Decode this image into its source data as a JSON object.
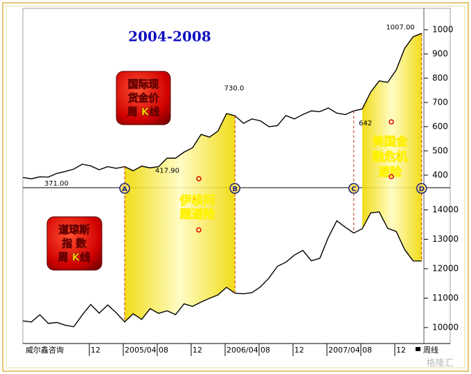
{
  "title": "2004-2008",
  "source": "威尔鑫咨询",
  "period": "周线",
  "watermark": "格隆汇",
  "markers": [
    "A",
    "B",
    "C",
    "D"
  ],
  "notes": [
    [
      "伊核问",
      "题避险"
    ],
    [
      "美国金",
      "融危机",
      "避险"
    ]
  ],
  "chart_data": [
    {
      "type": "line",
      "label_lines": [
        "国际现",
        "货金价",
        "周 K线"
      ],
      "color": "#000000",
      "values": [
        390,
        385,
        393,
        392,
        407,
        415,
        425,
        445,
        438,
        422,
        435,
        428,
        435,
        418,
        437,
        430,
        435,
        470,
        470,
        495,
        513,
        568,
        557,
        582,
        654,
        645,
        614,
        632,
        624,
        600,
        604,
        646,
        632,
        650,
        665,
        662,
        677,
        656,
        650,
        665,
        673,
        743,
        789,
        783,
        834,
        923,
        971,
        985
      ],
      "ylim": [
        351,
        1037
      ],
      "yticks": [
        400,
        500,
        600,
        700,
        800,
        900,
        1000
      ],
      "price_labels": [
        {
          "value": 1007,
          "label": "1007.00"
        },
        {
          "value": 730,
          "label": "730.0"
        },
        {
          "value": 642,
          "label": "642"
        },
        {
          "value": 417.9,
          "label": "417.90"
        },
        {
          "value": 371,
          "label": "371.00"
        }
      ]
    },
    {
      "type": "line",
      "label_lines": [
        "道琼斯",
        "指  数",
        "周 K线"
      ],
      "color": "#000000",
      "categories": [
        null,
        null,
        null,
        null,
        null,
        null,
        null,
        null,
        "12",
        null,
        null,
        null,
        "2005/04",
        null,
        null,
        null,
        "08",
        null,
        null,
        null,
        "12",
        null,
        null,
        null,
        "2006/04",
        null,
        null,
        null,
        "08",
        null,
        null,
        null,
        "12",
        null,
        null,
        null,
        "2007/04",
        null,
        null,
        null,
        "08",
        null,
        null,
        null,
        "12",
        null,
        null,
        null
      ],
      "values": [
        10225,
        10188,
        10435,
        10140,
        10174,
        10080,
        10027,
        10428,
        10783,
        10490,
        10766,
        10504,
        10193,
        10467,
        10275,
        10641,
        10482,
        10569,
        10440,
        10806,
        10718,
        10865,
        10993,
        11109,
        11367,
        11168,
        11150,
        11186,
        11381,
        11679,
        12081,
        12221,
        12463,
        12622,
        12268,
        12354,
        13063,
        13628,
        13409,
        13212,
        13358,
        13896,
        13930,
        13372,
        13265,
        12650,
        12266,
        12262
      ],
      "ylim": [
        9480,
        14730
      ],
      "yticks": [
        10000,
        11000,
        12000,
        13000,
        14000
      ]
    }
  ]
}
